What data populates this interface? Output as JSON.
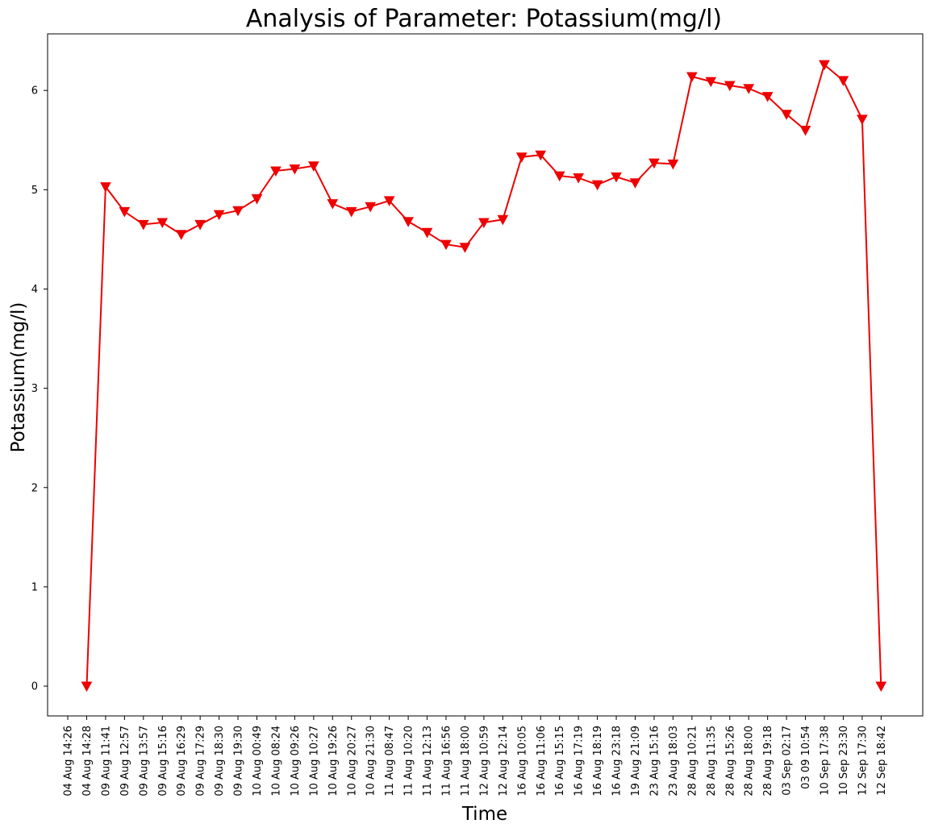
{
  "chart_data": {
    "type": "line",
    "title": "Analysis of Parameter: Potassium(mg/l)",
    "xlabel": "Time",
    "ylabel": "Potassium(mg/l)",
    "x": [
      "04 Aug 14:26",
      "04 Aug 14:28",
      "09 Aug 11:41",
      "09 Aug 12:57",
      "09 Aug 13:57",
      "09 Aug 15:16",
      "09 Aug 16:29",
      "09 Aug 17:29",
      "09 Aug 18:30",
      "09 Aug 19:30",
      "10 Aug 00:49",
      "10 Aug 08:24",
      "10 Aug 09:26",
      "10 Aug 10:27",
      "10 Aug 19:26",
      "10 Aug 20:27",
      "10 Aug 21:30",
      "11 Aug 08:47",
      "11 Aug 10:20",
      "11 Aug 12:13",
      "11 Aug 16:56",
      "11 Aug 18:00",
      "12 Aug 10:59",
      "12 Aug 12:14",
      "16 Aug 10:05",
      "16 Aug 11:06",
      "16 Aug 15:15",
      "16 Aug 17:19",
      "16 Aug 18:19",
      "16 Aug 23:18",
      "19 Aug 21:09",
      "23 Aug 15:16",
      "23 Aug 18:03",
      "28 Aug 10:21",
      "28 Aug 11:35",
      "28 Aug 15:26",
      "28 Aug 18:00",
      "28 Aug 19:18",
      "03 Sep 02:17",
      "03 09 10:54",
      "10 Sep 17:38",
      "10 Sep 23:30",
      "12 Sep 17:30",
      "12 Sep 18:42"
    ],
    "series": [
      {
        "values": [
          null,
          0,
          5.03,
          4.78,
          4.65,
          4.67,
          4.55,
          4.65,
          4.75,
          4.79,
          4.91,
          5.19,
          5.21,
          5.24,
          4.86,
          4.78,
          4.83,
          4.89,
          4.68,
          4.57,
          4.45,
          4.42,
          4.67,
          4.7,
          5.33,
          5.35,
          5.14,
          5.12,
          5.05,
          5.13,
          5.07,
          5.27,
          5.26,
          6.14,
          6.09,
          6.05,
          6.02,
          5.94,
          5.76,
          5.6,
          6.26,
          6.1,
          5.71,
          0
        ],
        "color": "#ee0000",
        "marker": "triangle-down"
      }
    ],
    "yticks": [
      "0",
      "1",
      "2",
      "3",
      "4",
      "5",
      "6"
    ],
    "ylim": [
      -0.3,
      6.57
    ],
    "grid": false,
    "legend": "none"
  }
}
